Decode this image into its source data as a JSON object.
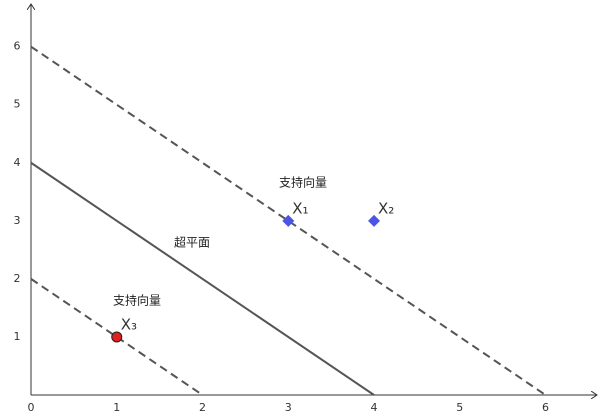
{
  "chart_data": {
    "type": "scatter",
    "xlim": [
      0,
      6.6
    ],
    "ylim": [
      0,
      6.7
    ],
    "xticks": [
      0,
      1,
      2,
      3,
      4,
      5,
      6
    ],
    "yticks": [
      1,
      2,
      3,
      4,
      5,
      6
    ],
    "lines": [
      {
        "x": [
          0,
          4
        ],
        "y": [
          4,
          0
        ],
        "style": "solid",
        "color": "#555555"
      },
      {
        "x": [
          0,
          6
        ],
        "y": [
          6,
          0
        ],
        "style": "dashed",
        "color": "#555555"
      },
      {
        "x": [
          0,
          2
        ],
        "y": [
          2,
          0
        ],
        "style": "dashed",
        "color": "#555555"
      }
    ],
    "points": [
      {
        "label": "X₁",
        "x": 3,
        "y": 3,
        "color": "#4a55e6",
        "marker": "diamond"
      },
      {
        "label": "X₂",
        "x": 4,
        "y": 3,
        "color": "#4a55e6",
        "marker": "diamond"
      },
      {
        "label": "X₃",
        "x": 1,
        "y": 1,
        "color": "#e02020",
        "marker": "circle"
      }
    ],
    "annotations": [
      "支持向量",
      "超平面",
      "支持向量"
    ]
  }
}
